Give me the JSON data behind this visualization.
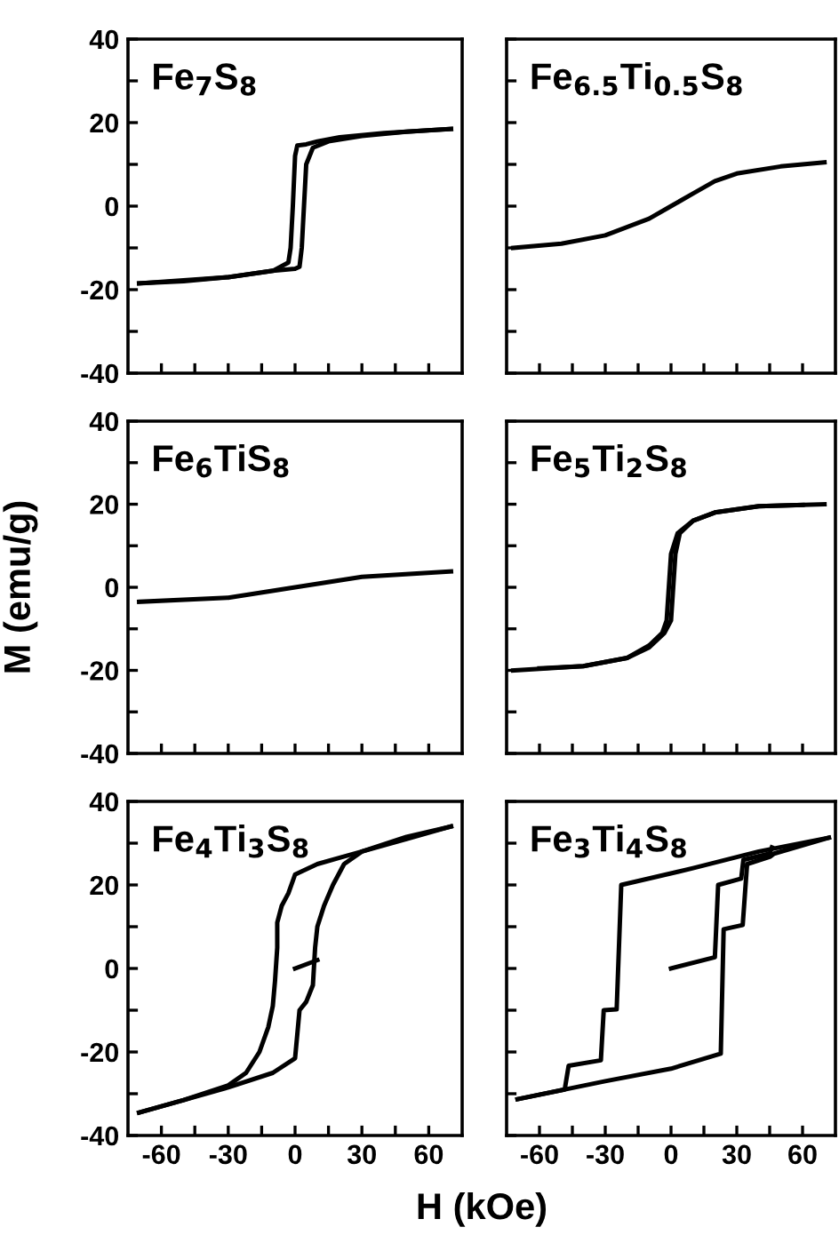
{
  "chart_data": [
    {
      "type": "line",
      "title": "Fe$_{7}$S$_{8}$",
      "xlim": [
        -75,
        75
      ],
      "ylim": [
        -40,
        40
      ],
      "tick_labels": "y",
      "xticks": [
        -60,
        {
          "value": -45,
          "label": null
        },
        -30,
        {
          "value": -15,
          "label": null
        },
        0,
        {
          "value": 15,
          "label": null
        },
        30,
        {
          "value": 45,
          "label": null
        },
        60
      ],
      "yticks": [
        -40,
        {
          "value": -30,
          "label": null
        },
        -20,
        {
          "value": -10,
          "label": null
        },
        0,
        {
          "value": 10,
          "label": null
        },
        20,
        {
          "value": 30,
          "label": null
        },
        40
      ],
      "series": [
        {
          "color": "#000000",
          "x": [
            70,
            40,
            20,
            10,
            5,
            1,
            0,
            -1,
            -2,
            -3,
            -10,
            -30,
            -50,
            -70
          ],
          "values": [
            18.5,
            17.5,
            16.5,
            15.5,
            14.8,
            14.5,
            12,
            0,
            -10,
            -13.5,
            -15.5,
            -17,
            -18,
            -18.5
          ]
        },
        {
          "color": "#000000",
          "x": [
            -70,
            -30,
            -10,
            0,
            2,
            3,
            4,
            5,
            8,
            15,
            30,
            50,
            70
          ],
          "values": [
            -18.5,
            -17,
            -15.5,
            -15,
            -14.5,
            -10,
            0,
            10,
            14,
            15.5,
            16.8,
            17.8,
            18.5
          ]
        }
      ]
    },
    {
      "type": "line",
      "title": "Fe$_{6.5}$Ti$_{0.5}$S$_{8}$",
      "xlim": [
        -75,
        75
      ],
      "ylim": [
        -40,
        40
      ],
      "tick_labels": false,
      "xticks": [
        -60,
        {
          "value": -45,
          "label": null
        },
        -30,
        {
          "value": -15,
          "label": null
        },
        0,
        {
          "value": 15,
          "label": null
        },
        30,
        {
          "value": 45,
          "label": null
        },
        60
      ],
      "yticks": [
        -40,
        {
          "value": -30,
          "label": null
        },
        -20,
        {
          "value": -10,
          "label": null
        },
        0,
        {
          "value": 10,
          "label": null
        },
        20,
        {
          "value": 30,
          "label": null
        },
        40
      ],
      "series": [
        {
          "color": "#000000",
          "x": [
            -72,
            -50,
            -30,
            -10,
            0,
            10,
            20,
            30,
            50,
            70
          ],
          "values": [
            -10,
            -9,
            -7,
            -3,
            0,
            3,
            6,
            7.8,
            9.5,
            10.5
          ]
        }
      ]
    },
    {
      "type": "line",
      "title": "Fe$_{6}$TiS$_{8}$",
      "ylabel": "M (emu/g)",
      "xlim": [
        -75,
        75
      ],
      "ylim": [
        -40,
        40
      ],
      "tick_labels": "y",
      "xticks": [
        -60,
        {
          "value": -45,
          "label": null
        },
        -30,
        {
          "value": -15,
          "label": null
        },
        0,
        {
          "value": 15,
          "label": null
        },
        30,
        {
          "value": 45,
          "label": null
        },
        60
      ],
      "yticks": [
        -40,
        {
          "value": -30,
          "label": null
        },
        -20,
        {
          "value": -10,
          "label": null
        },
        0,
        {
          "value": 10,
          "label": null
        },
        20,
        {
          "value": 30,
          "label": null
        },
        40
      ],
      "series": [
        {
          "color": "#000000",
          "x": [
            -70,
            -30,
            0,
            30,
            70
          ],
          "values": [
            -3.5,
            -2.5,
            0,
            2.5,
            3.8
          ]
        }
      ]
    },
    {
      "type": "line",
      "title": "Fe$_{5}$Ti$_{2}$S$_{8}$",
      "xlim": [
        -75,
        75
      ],
      "ylim": [
        -40,
        40
      ],
      "tick_labels": false,
      "xticks": [
        -60,
        {
          "value": -45,
          "label": null
        },
        -30,
        {
          "value": -15,
          "label": null
        },
        0,
        {
          "value": 15,
          "label": null
        },
        30,
        {
          "value": 45,
          "label": null
        },
        60
      ],
      "yticks": [
        -40,
        {
          "value": -30,
          "label": null
        },
        -20,
        {
          "value": -10,
          "label": null
        },
        0,
        {
          "value": 10,
          "label": null
        },
        20,
        {
          "value": 30,
          "label": null
        },
        40
      ],
      "series": [
        {
          "color": "#000000",
          "x": [
            70,
            40,
            20,
            10,
            3,
            0,
            -1,
            -2,
            -4,
            -10,
            -20,
            -40,
            -72
          ],
          "values": [
            20,
            19.5,
            18,
            16,
            13,
            8,
            0,
            -8,
            -11,
            -14,
            -17,
            -19,
            -20
          ]
        },
        {
          "color": "#000000",
          "x": [
            -60,
            -40,
            -20,
            -10,
            -3,
            0,
            1,
            2,
            4,
            10,
            20,
            40,
            60
          ],
          "values": [
            -19.5,
            -19,
            -17,
            -14.5,
            -11,
            -8,
            0,
            8,
            13,
            16,
            18,
            19.5,
            19.8
          ]
        }
      ]
    },
    {
      "type": "line",
      "title": "Fe$_{4}$Ti$_{3}$S$_{8}$",
      "xlabel": "H (kOe)",
      "xlim": [
        -75,
        75
      ],
      "ylim": [
        -40,
        40
      ],
      "xticks": [
        -60,
        {
          "value": -45,
          "label": null
        },
        -30,
        {
          "value": -15,
          "label": null
        },
        0,
        {
          "value": 15,
          "label": null
        },
        30,
        {
          "value": 45,
          "label": null
        },
        60
      ],
      "yticks": [
        -40,
        {
          "value": -30,
          "label": null
        },
        -20,
        {
          "value": -10,
          "label": null
        },
        0,
        {
          "value": 10,
          "label": null
        },
        20,
        {
          "value": 30,
          "label": null
        },
        40
      ],
      "series": [
        {
          "color": "#000000",
          "x": [
            0,
            10
          ],
          "values": [
            0,
            2
          ]
        },
        {
          "color": "#000000",
          "x": [
            70,
            50,
            30,
            20,
            10,
            0,
            -3,
            -6,
            -8,
            -8,
            -9,
            -10,
            -12,
            -16,
            -22,
            -30,
            -50,
            -70
          ],
          "values": [
            34,
            31,
            28,
            26.5,
            25,
            22.5,
            18,
            15,
            11,
            5,
            -3,
            -9,
            -14,
            -20,
            -25,
            -28,
            -31.5,
            -34.5
          ]
        },
        {
          "color": "#000000",
          "x": [
            -70,
            -50,
            -30,
            -10,
            0,
            2,
            5,
            8,
            9,
            10,
            13,
            17,
            22,
            30,
            50,
            70
          ],
          "values": [
            -34.5,
            -31.5,
            -28.5,
            -25,
            -21.5,
            -10,
            -8,
            -4,
            5,
            10,
            15,
            20,
            25,
            28,
            31.5,
            34
          ]
        }
      ]
    },
    {
      "type": "line",
      "title": "Fe$_{3}$Ti$_{4}$S$_{8}$",
      "xlim": [
        -75,
        75
      ],
      "ylim": [
        -40,
        40
      ],
      "tick_labels": "x",
      "xticks": [
        -60,
        {
          "value": -45,
          "label": null
        },
        -30,
        {
          "value": -15,
          "label": null
        },
        0,
        {
          "value": 15,
          "label": null
        },
        30,
        {
          "value": 45,
          "label": null
        },
        60
      ],
      "yticks": [
        -40,
        {
          "value": -30,
          "label": null
        },
        -20,
        {
          "value": -10,
          "label": null
        },
        0,
        {
          "value": 10,
          "label": null
        },
        20,
        {
          "value": 30,
          "label": null
        },
        40
      ],
      "series": [
        {
          "color": "#000000",
          "x": [
            0,
            20,
            21.5,
            32,
            33,
            45,
            46
          ],
          "values": [
            0,
            2.7,
            20,
            21.5,
            26,
            27.5,
            29
          ]
        },
        {
          "color": "#000000",
          "x": [
            72,
            40,
            10,
            -22.7,
            -24.8,
            -30.7,
            -32,
            -46.7,
            -48.5,
            -70
          ],
          "values": [
            31.3,
            28,
            24,
            20,
            -9.8,
            -10,
            -22,
            -23.3,
            -29,
            -31.3
          ]
        },
        {
          "color": "#000000",
          "x": [
            -70,
            -30,
            0,
            22.7,
            24,
            32.7,
            34.7,
            45.3,
            47,
            72
          ],
          "values": [
            -31.3,
            -27,
            -24,
            -20.4,
            9.4,
            10.4,
            25,
            26.8,
            27.5,
            31.3
          ]
        }
      ]
    }
  ]
}
